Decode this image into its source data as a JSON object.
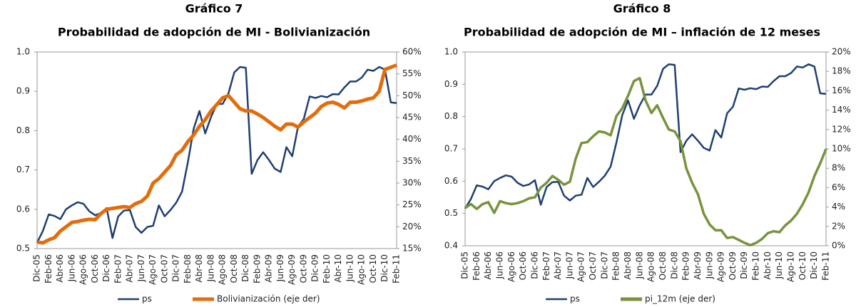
{
  "chart_data": [
    {
      "type": "line",
      "title": "Gráfico 7",
      "subtitle": "Probabilidad de adopción de MI - Bolivianización",
      "categories": [
        "Dic-05",
        null,
        "Feb-06",
        null,
        "Abr-06",
        null,
        "Jun-06",
        null,
        "Ago-06",
        null,
        "Oct-06",
        null,
        "Dic-06",
        null,
        "Feb-07",
        null,
        "Abr-07",
        null,
        "Jun-07",
        null,
        "Ago-07",
        null,
        "Oct-07",
        null,
        "Dic-07",
        null,
        "Feb-08",
        null,
        "Abr-08",
        null,
        "Jun-08",
        null,
        "Ago-08",
        null,
        "Oct-08",
        null,
        "Dic-08",
        null,
        "Feb-09",
        null,
        "Abr-09",
        null,
        "Jun-09",
        null,
        "Ago-09",
        null,
        "Oct-09",
        null,
        "Dic-09",
        null,
        "Feb-10",
        null,
        "Abr-10",
        null,
        "Jun-10",
        null,
        "Ago-10",
        null,
        "Oct-10",
        null,
        "Dic-10",
        null,
        "Feb-11"
      ],
      "series": [
        {
          "name": "ps",
          "color": "#1f3f73",
          "values": [
            0.515,
            0.545,
            0.587,
            0.583,
            0.575,
            0.6,
            0.61,
            0.618,
            0.614,
            0.595,
            0.585,
            0.59,
            0.603,
            0.527,
            0.582,
            0.597,
            0.598,
            0.555,
            0.54,
            0.555,
            0.558,
            0.61,
            0.582,
            0.598,
            0.617,
            0.645,
            0.72,
            0.805,
            0.85,
            0.793,
            0.835,
            0.868,
            0.868,
            0.895,
            0.948,
            0.962,
            0.96,
            0.69,
            0.725,
            0.745,
            0.725,
            0.703,
            0.695,
            0.758,
            0.735,
            0.81,
            0.83,
            0.887,
            0.883,
            0.888,
            0.885,
            0.893,
            0.892,
            0.91,
            0.925,
            0.925,
            0.935,
            0.955,
            0.952,
            0.962,
            0.955,
            0.872,
            0.87
          ]
        },
        {
          "name": "Bolivianización (eje der)",
          "color": "#e46c0a",
          "axis": "y2",
          "values": [
            16.5,
            16.3,
            17,
            17.5,
            19,
            20,
            21,
            21.2,
            21.5,
            21.7,
            21.6,
            23,
            24,
            24.2,
            24.4,
            24.6,
            24.4,
            25.3,
            25.8,
            27,
            30,
            31,
            32.5,
            34,
            36.5,
            37.5,
            39.5,
            41,
            43,
            44.5,
            46.5,
            48,
            49.5,
            50,
            48.5,
            47,
            46.5,
            46.5,
            45.8,
            45,
            44,
            43,
            42.2,
            43.5,
            43.5,
            42.8,
            44,
            45,
            46,
            47.5,
            48.3,
            48.5,
            48,
            47.2,
            48.5,
            48.5,
            48.8,
            49.2,
            49.5,
            51,
            56,
            56.5,
            57
          ]
        }
      ],
      "ylim": [
        0.5,
        1.0
      ],
      "yticks": [
        0.5,
        0.6,
        0.7,
        0.8,
        0.9,
        {
          "value": 1.0,
          "label": "1.0"
        }
      ],
      "y2lim": [
        15,
        60
      ],
      "y2ticks": [
        {
          "value": 15,
          "label": "15%"
        },
        {
          "value": 20,
          "label": "20%"
        },
        {
          "value": 25,
          "label": "25%"
        },
        {
          "value": 30,
          "label": "30%"
        },
        {
          "value": 35,
          "label": "35%"
        },
        {
          "value": 40,
          "label": "40%"
        },
        {
          "value": 45,
          "label": "45%"
        },
        {
          "value": 50,
          "label": "50%"
        },
        {
          "value": 55,
          "label": "55%"
        },
        {
          "value": 60,
          "label": "60%"
        }
      ]
    },
    {
      "type": "line",
      "title": "Gráfico 8",
      "subtitle": "Probabilidad de adopción de MI – inflación de 12 meses",
      "categories": [
        "Dic-05",
        null,
        "Feb-06",
        null,
        "Abr-06",
        null,
        "Jun-06",
        null,
        "Ago-06",
        null,
        "Oct-06",
        null,
        "Dic-06",
        null,
        "Feb-07",
        null,
        "Abr-07",
        null,
        "Jun-07",
        null,
        "Ago-07",
        null,
        "Oct-07",
        null,
        "Dic-07",
        null,
        "Feb-08",
        null,
        "Abr-08",
        null,
        "Jun-08",
        null,
        "Ago-08",
        null,
        "Oct-08",
        null,
        "Dic-08",
        null,
        "Feb-09",
        null,
        "Abr-09",
        null,
        "Jun-09",
        null,
        "Ago-09",
        null,
        "Oct-09",
        null,
        "Dic-09",
        null,
        "Feb-10",
        null,
        "Abr-10",
        null,
        "Jun-10",
        null,
        "Ago-10",
        null,
        "Oct-10",
        null,
        "Dic-10",
        null,
        "Feb-11"
      ],
      "series": [
        {
          "name": "ps",
          "color": "#1f3f73",
          "values": [
            0.515,
            0.545,
            0.587,
            0.583,
            0.575,
            0.6,
            0.61,
            0.618,
            0.614,
            0.595,
            0.585,
            0.59,
            0.603,
            0.527,
            0.582,
            0.597,
            0.598,
            0.555,
            0.54,
            0.555,
            0.558,
            0.61,
            0.582,
            0.598,
            0.617,
            0.645,
            0.72,
            0.805,
            0.85,
            0.793,
            0.835,
            0.868,
            0.868,
            0.895,
            0.948,
            0.962,
            0.96,
            0.69,
            0.725,
            0.745,
            0.725,
            0.703,
            0.695,
            0.758,
            0.735,
            0.81,
            0.83,
            0.887,
            0.883,
            0.888,
            0.885,
            0.893,
            0.892,
            0.91,
            0.925,
            0.925,
            0.935,
            0.955,
            0.952,
            0.962,
            0.955,
            0.872,
            0.87
          ]
        },
        {
          "name": "pi_12m (eje der)",
          "color": "#77933c",
          "axis": "y2",
          "values": [
            3.9,
            4.3,
            3.8,
            4.3,
            4.5,
            3.4,
            4.6,
            4.4,
            4.3,
            4.4,
            4.6,
            4.9,
            5,
            6,
            6.5,
            7.2,
            6.8,
            6.3,
            6.6,
            9,
            10.6,
            10.7,
            11.3,
            11.8,
            11.7,
            11.4,
            13.4,
            14.2,
            15.5,
            17,
            17.3,
            15,
            13.7,
            14.5,
            13.2,
            12,
            11.8,
            10.8,
            8,
            6.5,
            5.3,
            3.3,
            2.2,
            1.6,
            1.6,
            0.8,
            0.9,
            0.6,
            0.3,
            0.05,
            0.3,
            0.7,
            1.3,
            1.5,
            1.4,
            2.1,
            2.6,
            3.3,
            4.3,
            5.5,
            7.2,
            8.5,
            10
          ]
        }
      ],
      "ylim": [
        0.4,
        1.0
      ],
      "yticks": [
        0.4,
        0.5,
        0.6,
        0.7,
        0.8,
        0.9,
        {
          "value": 1.0,
          "label": "1.0"
        }
      ],
      "y2lim": [
        0,
        20
      ],
      "y2ticks": [
        {
          "value": 0,
          "label": "0%"
        },
        {
          "value": 2,
          "label": "2%"
        },
        {
          "value": 4,
          "label": "4%"
        },
        {
          "value": 6,
          "label": "6%"
        },
        {
          "value": 8,
          "label": "8%"
        },
        {
          "value": 10,
          "label": "10%"
        },
        {
          "value": 12,
          "label": "12%"
        },
        {
          "value": 14,
          "label": "14%"
        },
        {
          "value": 16,
          "label": "16%"
        },
        {
          "value": 18,
          "label": "18%"
        },
        {
          "value": 20,
          "label": "20%"
        }
      ]
    }
  ]
}
